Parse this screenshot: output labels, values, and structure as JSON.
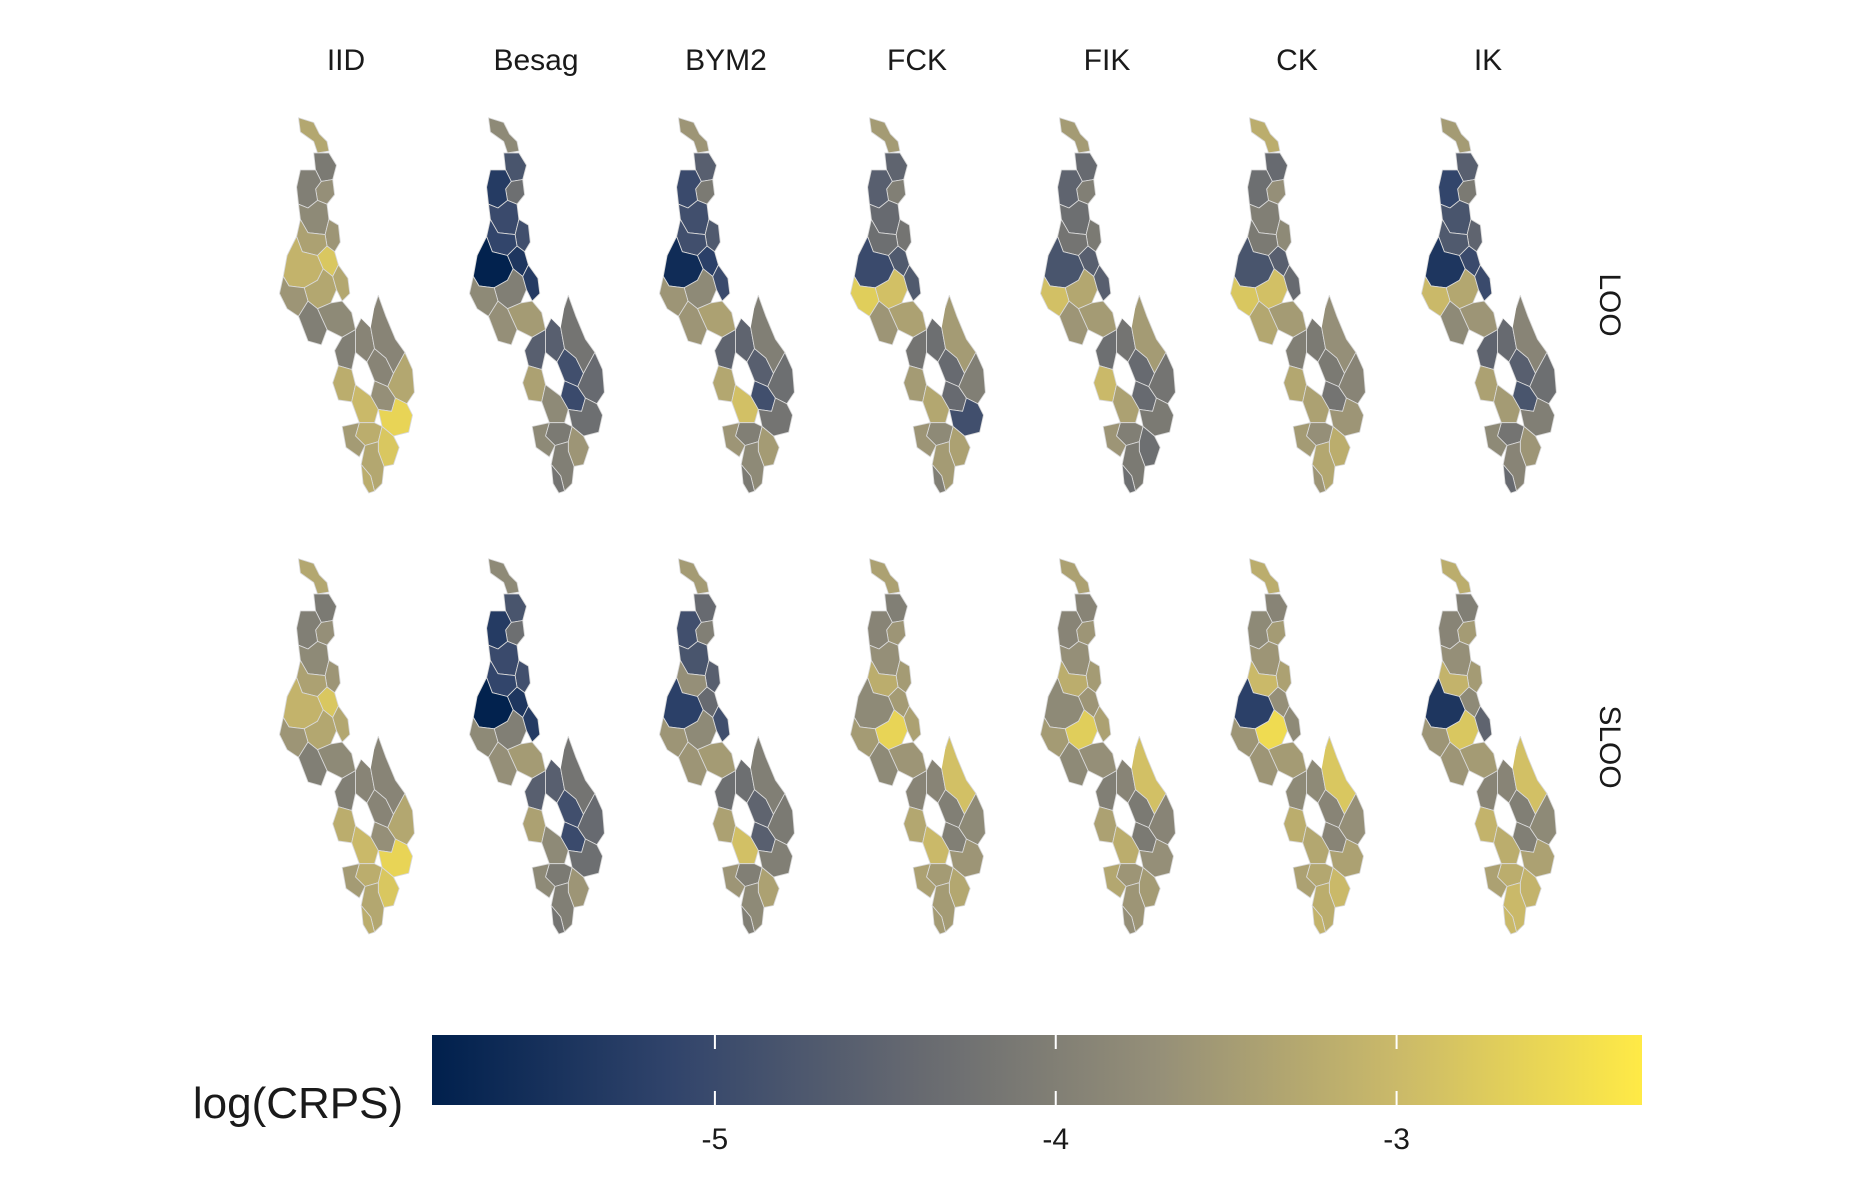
{
  "figure": {
    "column_labels": [
      "IID",
      "Besag",
      "BYM2",
      "FCK",
      "FIK",
      "CK",
      "IK"
    ],
    "row_labels": [
      "LOO",
      "SLOO"
    ],
    "legend": {
      "title": "log(CRPS)",
      "min": -5.83,
      "max": -2.28,
      "tick_values": [
        -5,
        -4,
        -3
      ],
      "tick_labels": [
        "-5",
        "-4",
        "-3"
      ],
      "gradient_colors": [
        "#00204D",
        "#31446B",
        "#666970",
        "#958F78",
        "#CBBA69",
        "#FFEA46"
      ]
    },
    "colors": {
      "lake": "#ffffff",
      "region_border": "#d9d9d9"
    }
  },
  "chart_data": {
    "type": "heatmap",
    "subtype": "choropleth-small-multiples",
    "columns": [
      "IID",
      "Besag",
      "BYM2",
      "FCK",
      "FIK",
      "CK",
      "IK"
    ],
    "rows": [
      "LOO",
      "SLOO"
    ],
    "color_variable": "log(CRPS)",
    "color_range": [
      -5.83,
      -2.28
    ],
    "panels": [
      {
        "row": "LOO",
        "col": "IID",
        "values": [
          -3.3,
          -4.1,
          -3.7,
          -4.0,
          -3.8,
          -3.6,
          -3.4,
          -3.1,
          -2.8,
          -3.3,
          -3.6,
          -3.3,
          -3.8,
          -4.0,
          -3.9,
          -4.0,
          -3.9,
          -3.9,
          -3.7,
          -3.3,
          -3.2,
          -3.0,
          -2.6,
          -3.2,
          -2.8,
          -3.5,
          -3.3,
          -3.2
        ]
      },
      {
        "row": "LOO",
        "col": "Besag",
        "values": [
          -3.8,
          -4.8,
          -4.3,
          -5.3,
          -5.0,
          -4.9,
          -5.1,
          -5.8,
          -5.4,
          -4.0,
          -3.8,
          -5.3,
          -3.5,
          -3.7,
          -4.6,
          -4.6,
          -4.9,
          -4.2,
          -5.0,
          -4.4,
          -3.4,
          -3.8,
          -4.3,
          -4.1,
          -3.6,
          -3.8,
          -4.0,
          -4.2
        ]
      },
      {
        "row": "LOO",
        "col": "BYM2",
        "values": [
          -3.6,
          -4.6,
          -4.1,
          -5.0,
          -4.9,
          -4.7,
          -4.9,
          -5.6,
          -5.2,
          -3.8,
          -3.6,
          -5.0,
          -3.4,
          -3.6,
          -4.5,
          -4.5,
          -4.6,
          -4.0,
          -4.9,
          -4.3,
          -3.3,
          -2.9,
          -4.2,
          -4.0,
          -3.5,
          -3.6,
          -3.8,
          -4.1
        ]
      },
      {
        "row": "LOO",
        "col": "FCK",
        "values": [
          -3.5,
          -4.5,
          -4.0,
          -4.6,
          -4.4,
          -4.2,
          -4.3,
          -5.0,
          -4.7,
          -2.9,
          -2.7,
          -4.7,
          -3.4,
          -3.6,
          -4.3,
          -4.2,
          -4.4,
          -3.5,
          -4.4,
          -4.0,
          -3.5,
          -3.3,
          -4.9,
          -3.8,
          -3.4,
          -3.6,
          -3.5,
          -4.0
        ]
      },
      {
        "row": "LOO",
        "col": "FIK",
        "values": [
          -3.5,
          -4.4,
          -4.0,
          -4.5,
          -4.3,
          -4.1,
          -4.2,
          -4.8,
          -4.6,
          -3.3,
          -2.9,
          -4.6,
          -3.5,
          -3.6,
          -4.2,
          -4.3,
          -4.4,
          -3.5,
          -4.4,
          -4.2,
          -3.0,
          -3.4,
          -4.1,
          -4.0,
          -4.3,
          -3.6,
          -4.1,
          -4.3
        ]
      },
      {
        "row": "LOO",
        "col": "CK",
        "values": [
          -3.2,
          -4.4,
          -3.7,
          -4.3,
          -4.0,
          -3.8,
          -4.1,
          -4.8,
          -4.6,
          -2.9,
          -2.8,
          -4.4,
          -3.5,
          -3.3,
          -4.1,
          -4.0,
          -4.1,
          -3.7,
          -4.2,
          -3.9,
          -3.3,
          -3.4,
          -3.6,
          -3.7,
          -3.2,
          -3.5,
          -3.3,
          -3.6
        ]
      },
      {
        "row": "LOO",
        "col": "IK",
        "values": [
          -3.5,
          -4.6,
          -4.1,
          -5.1,
          -4.8,
          -4.5,
          -4.7,
          -5.4,
          -5.0,
          -3.3,
          -3.0,
          -5.0,
          -3.6,
          -3.8,
          -4.4,
          -4.5,
          -4.6,
          -3.9,
          -4.8,
          -4.3,
          -3.4,
          -3.5,
          -4.0,
          -4.2,
          -3.6,
          -3.8,
          -3.9,
          -4.4
        ]
      },
      {
        "row": "SLOO",
        "col": "IID",
        "values": [
          -3.3,
          -4.1,
          -3.7,
          -4.0,
          -3.8,
          -3.6,
          -3.4,
          -3.1,
          -2.8,
          -3.3,
          -3.6,
          -3.3,
          -3.8,
          -4.0,
          -3.9,
          -4.0,
          -3.9,
          -3.9,
          -3.7,
          -3.3,
          -3.2,
          -3.0,
          -2.6,
          -3.2,
          -2.8,
          -3.5,
          -3.3,
          -3.2
        ]
      },
      {
        "row": "SLOO",
        "col": "Besag",
        "values": [
          -3.8,
          -4.8,
          -4.3,
          -5.3,
          -5.0,
          -4.9,
          -5.1,
          -5.8,
          -5.4,
          -4.0,
          -3.8,
          -5.3,
          -3.5,
          -3.7,
          -4.6,
          -4.6,
          -4.9,
          -4.2,
          -5.0,
          -4.4,
          -3.4,
          -3.8,
          -4.3,
          -4.1,
          -3.6,
          -3.8,
          -4.0,
          -4.2
        ]
      },
      {
        "row": "SLOO",
        "col": "BYM2",
        "values": [
          -3.5,
          -4.4,
          -4.0,
          -4.9,
          -4.8,
          -4.6,
          -3.7,
          -5.2,
          -4.4,
          -3.8,
          -3.6,
          -4.9,
          -3.5,
          -3.6,
          -4.3,
          -4.3,
          -4.5,
          -4.0,
          -4.6,
          -4.1,
          -3.4,
          -2.9,
          -4.0,
          -4.0,
          -3.4,
          -3.6,
          -3.8,
          -4.0
        ]
      },
      {
        "row": "SLOO",
        "col": "FCK",
        "values": [
          -3.4,
          -4.0,
          -3.6,
          -3.9,
          -3.7,
          -3.5,
          -3.2,
          -3.8,
          -3.5,
          -2.6,
          -3.5,
          -3.4,
          -3.6,
          -3.8,
          -3.9,
          -3.9,
          -4.0,
          -2.9,
          -4.0,
          -3.8,
          -3.3,
          -3.0,
          -3.6,
          -3.5,
          -3.3,
          -3.4,
          -3.5,
          -3.5
        ]
      },
      {
        "row": "SLOO",
        "col": "FIK",
        "values": [
          -3.4,
          -3.9,
          -3.6,
          -3.9,
          -3.7,
          -3.5,
          -3.2,
          -3.8,
          -3.6,
          -2.7,
          -3.5,
          -3.4,
          -3.7,
          -3.8,
          -3.9,
          -4.0,
          -4.1,
          -2.9,
          -4.1,
          -3.9,
          -3.4,
          -3.2,
          -3.7,
          -3.6,
          -3.5,
          -3.3,
          -3.6,
          -3.7
        ]
      },
      {
        "row": "SLOO",
        "col": "CK",
        "values": [
          -3.2,
          -3.9,
          -3.5,
          -3.8,
          -3.6,
          -3.4,
          -3.0,
          -5.2,
          -3.7,
          -2.5,
          -3.6,
          -3.8,
          -3.5,
          -3.6,
          -3.8,
          -3.8,
          -3.9,
          -2.8,
          -3.9,
          -3.7,
          -3.2,
          -3.3,
          -3.4,
          -3.3,
          -3.0,
          -3.4,
          -3.2,
          -3.1
        ]
      },
      {
        "row": "SLOO",
        "col": "IK",
        "values": [
          -3.2,
          -4.0,
          -3.5,
          -3.9,
          -3.7,
          -3.5,
          -3.1,
          -5.4,
          -3.8,
          -2.8,
          -3.6,
          -4.5,
          -3.5,
          -3.6,
          -3.9,
          -3.9,
          -4.0,
          -2.9,
          -4.0,
          -3.8,
          -3.1,
          -3.2,
          -3.4,
          -3.2,
          -3.1,
          -3.4,
          -3.0,
          -3.0
        ]
      }
    ]
  }
}
